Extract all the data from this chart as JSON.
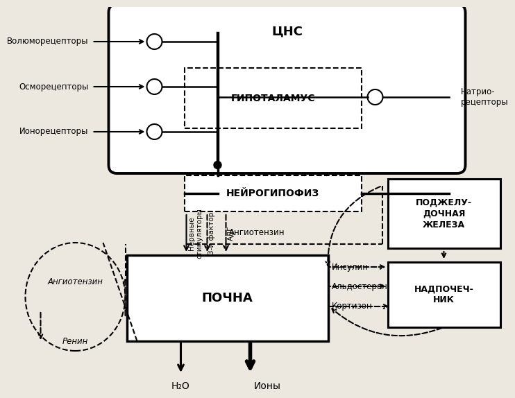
{
  "bg_color": "#ede8df",
  "cns_label": "ЦНС",
  "hypothalamus_label": "ГИПОТАЛАМУС",
  "neurohypophysis_label": "НЕЙРОГИПОФИЗ",
  "kidney_label": "ПОЧНА",
  "pancreas_label": "ПОДЖЕЛУ-\nДОЧНАЯ\nЖЕЛЕЗА",
  "adrenal_label": "НАДПОЧЕЧ-\nНИК",
  "receptor_labels": [
    "Волюморецепторы",
    "Осморецепторы",
    "Ионорецепторы"
  ],
  "natrio_label": "Натрио-\nрецепторы",
  "angiotensin_circ": "Ангиотензин",
  "renin_label": "Ренин",
  "h2o_label": "Н₂О",
  "ions_label": "Ионы",
  "nerve_stim_label": "Нервные\nстимуляторы",
  "factor3_label": "3-й фактор",
  "adg_label": "АДГ",
  "angiotensin_horiz": "Ангиотензин",
  "insulin_label": "Инсулин",
  "aldosterone_label": "Альдостерон",
  "cortisone_label": "Кортизон"
}
